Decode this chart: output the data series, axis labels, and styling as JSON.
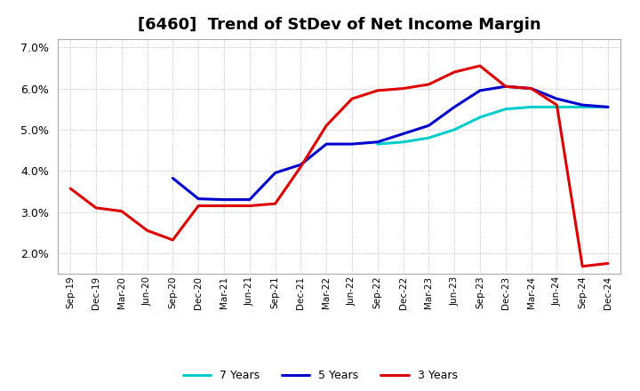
{
  "title": "[6460]  Trend of StDev of Net Income Margin",
  "x_labels": [
    "Sep-19",
    "Dec-19",
    "Mar-20",
    "Jun-20",
    "Sep-20",
    "Dec-20",
    "Mar-21",
    "Jun-21",
    "Sep-21",
    "Dec-21",
    "Mar-22",
    "Jun-22",
    "Sep-22",
    "Dec-22",
    "Mar-23",
    "Jun-23",
    "Sep-23",
    "Dec-23",
    "Mar-24",
    "Jun-24",
    "Sep-24",
    "Dec-24"
  ],
  "series_3y": [
    3.57,
    3.1,
    3.02,
    2.55,
    2.32,
    3.15,
    3.15,
    3.15,
    3.2,
    4.1,
    5.1,
    5.75,
    5.95,
    6.0,
    6.1,
    6.4,
    6.55,
    6.05,
    6.0,
    5.6,
    1.68,
    1.75
  ],
  "series_5y": [
    null,
    null,
    null,
    null,
    3.82,
    3.32,
    3.3,
    3.3,
    3.95,
    4.15,
    4.65,
    4.65,
    4.7,
    4.9,
    5.1,
    5.55,
    5.95,
    6.05,
    6.0,
    5.75,
    5.6,
    5.55
  ],
  "series_7y": [
    null,
    null,
    null,
    null,
    null,
    null,
    null,
    null,
    null,
    null,
    null,
    null,
    4.65,
    4.7,
    4.8,
    5.0,
    5.3,
    5.5,
    5.55,
    5.55,
    5.55,
    5.55
  ],
  "series_10y": [
    null,
    null,
    null,
    null,
    null,
    null,
    null,
    null,
    null,
    null,
    null,
    null,
    null,
    null,
    null,
    null,
    null,
    null,
    null,
    null,
    null,
    null
  ],
  "colors": {
    "3y": "#dd0000",
    "5y": "#0000cc",
    "7y": "#00cccc",
    "10y": "#008800"
  },
  "ylim": [
    1.5,
    7.2
  ],
  "yticks": [
    2.0,
    3.0,
    4.0,
    5.0,
    6.0,
    7.0
  ],
  "bg_color": "#ffffff",
  "plot_bg": "#ffffff",
  "title_fontsize": 13,
  "linewidth": 2.2
}
